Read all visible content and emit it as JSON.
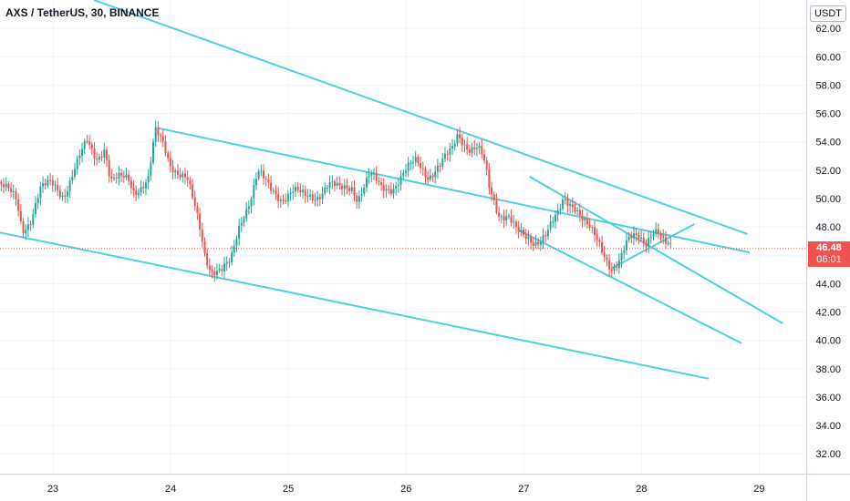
{
  "header": {
    "symbol_title": "AXS / TetherUS, 30, BINANCE",
    "currency": "USDT"
  },
  "last_price": {
    "price": "46.48",
    "countdown": "06:01",
    "color": "#ef5350"
  },
  "colors": {
    "up": "#26a69a",
    "down": "#ef5350",
    "trendline": "#4dd0e1",
    "grid": "#f0f3fa",
    "axis_text": "#131722"
  },
  "chart_data": {
    "type": "candlestick",
    "title": "AXS / TetherUS, 30, BINANCE",
    "y_axis_label": "USDT",
    "ylim": [
      30.6,
      64.0
    ],
    "xlim": [
      22.55,
      29.4
    ],
    "y_ticks": [
      32.0,
      34.0,
      36.0,
      38.0,
      40.0,
      42.0,
      44.0,
      46.0,
      48.0,
      50.0,
      52.0,
      54.0,
      56.0,
      58.0,
      60.0,
      62.0
    ],
    "x_ticks": [
      23,
      24,
      25,
      26,
      27,
      28,
      29
    ],
    "last_price": 46.48,
    "price_path": [
      [
        22.55,
        51.2
      ],
      [
        22.7,
        49.8
      ],
      [
        22.75,
        47.8
      ],
      [
        22.82,
        48.6
      ],
      [
        22.9,
        50.6
      ],
      [
        23.0,
        51.0
      ],
      [
        23.1,
        50.3
      ],
      [
        23.2,
        52.2
      ],
      [
        23.3,
        53.9
      ],
      [
        23.38,
        52.9
      ],
      [
        23.45,
        53.7
      ],
      [
        23.5,
        51.2
      ],
      [
        23.65,
        51.4
      ],
      [
        23.7,
        50.6
      ],
      [
        23.82,
        51.3
      ],
      [
        23.88,
        54.6
      ],
      [
        23.95,
        53.8
      ],
      [
        24.0,
        52.6
      ],
      [
        24.08,
        51.9
      ],
      [
        24.15,
        51.3
      ],
      [
        24.2,
        49.7
      ],
      [
        24.25,
        48.2
      ],
      [
        24.3,
        46.2
      ],
      [
        24.35,
        45.1
      ],
      [
        24.45,
        44.9
      ],
      [
        24.52,
        45.4
      ],
      [
        24.6,
        48.3
      ],
      [
        24.7,
        50.4
      ],
      [
        24.75,
        51.9
      ],
      [
        24.85,
        50.6
      ],
      [
        24.95,
        50.1
      ],
      [
        25.05,
        50.6
      ],
      [
        25.15,
        50.0
      ],
      [
        25.25,
        50.2
      ],
      [
        25.35,
        51.1
      ],
      [
        25.45,
        50.5
      ],
      [
        25.55,
        50.9
      ],
      [
        25.6,
        50.1
      ],
      [
        25.7,
        51.6
      ],
      [
        25.8,
        50.7
      ],
      [
        25.9,
        50.9
      ],
      [
        26.0,
        51.8
      ],
      [
        26.1,
        52.6
      ],
      [
        26.2,
        51.7
      ],
      [
        26.3,
        52.3
      ],
      [
        26.4,
        53.3
      ],
      [
        26.45,
        54.6
      ],
      [
        26.55,
        53.6
      ],
      [
        26.62,
        53.5
      ],
      [
        26.67,
        52.6
      ],
      [
        26.72,
        50.6
      ],
      [
        26.8,
        49.0
      ],
      [
        26.88,
        48.9
      ],
      [
        26.95,
        47.6
      ],
      [
        27.0,
        47.2
      ],
      [
        27.1,
        47.0
      ],
      [
        27.2,
        47.6
      ],
      [
        27.3,
        48.7
      ],
      [
        27.35,
        49.9
      ],
      [
        27.45,
        49.6
      ],
      [
        27.55,
        48.0
      ],
      [
        27.62,
        47.1
      ],
      [
        27.7,
        46.0
      ],
      [
        27.76,
        45.2
      ],
      [
        27.82,
        45.6
      ],
      [
        27.9,
        46.9
      ],
      [
        27.98,
        47.4
      ],
      [
        28.05,
        47.1
      ],
      [
        28.1,
        47.8
      ],
      [
        28.15,
        47.6
      ],
      [
        28.2,
        46.7
      ],
      [
        28.25,
        46.5
      ]
    ],
    "trendlines": [
      {
        "from": [
          23.35,
          64.0
        ],
        "to": [
          28.9,
          47.5
        ]
      },
      {
        "from": [
          23.9,
          54.95
        ],
        "to": [
          28.92,
          46.2
        ]
      },
      {
        "from": [
          22.55,
          47.6
        ],
        "to": [
          28.57,
          37.3
        ]
      },
      {
        "from": [
          27.05,
          51.55
        ],
        "to": [
          29.2,
          41.2
        ]
      },
      {
        "from": [
          26.95,
          47.8
        ],
        "to": [
          28.85,
          39.8
        ]
      },
      {
        "from": [
          27.75,
          45.1
        ],
        "to": [
          28.45,
          48.2
        ]
      }
    ]
  }
}
